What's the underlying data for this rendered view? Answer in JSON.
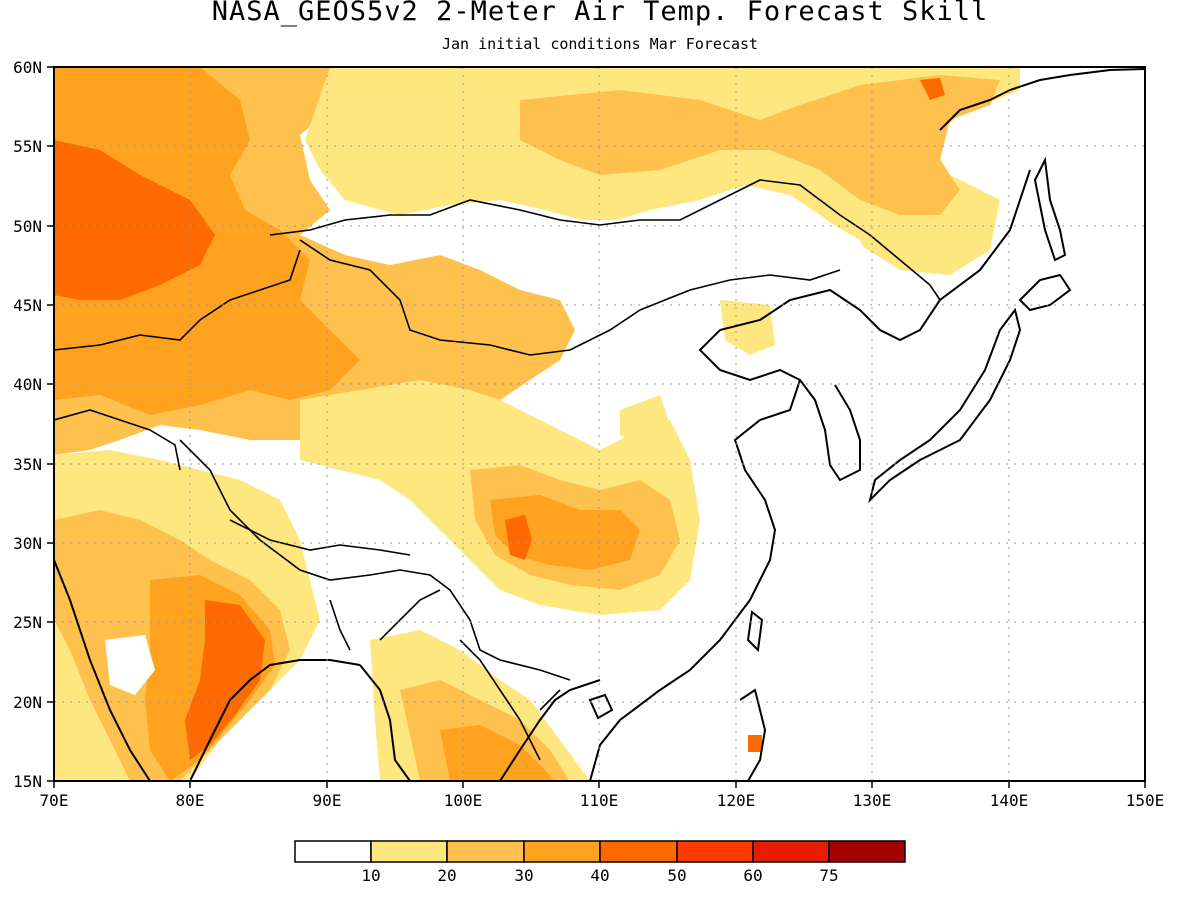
{
  "title": "NASA_GEOS5v2 2-Meter Air Temp. Forecast Skill",
  "subtitle": "Jan initial conditions  Mar Forecast",
  "map": {
    "lon_range": [
      70,
      150
    ],
    "lat_range": [
      15,
      60
    ],
    "lon_ticks": [
      "70E",
      "80E",
      "90E",
      "100E",
      "110E",
      "120E",
      "130E",
      "140E",
      "150E"
    ],
    "lat_ticks": [
      "60N",
      "55N",
      "50N",
      "45N",
      "40N",
      "35N",
      "30N",
      "25N",
      "20N",
      "15N"
    ],
    "grid": "dotted",
    "region": "East and South Asia"
  },
  "colorbar": {
    "colors": [
      "#ffffff",
      "#ffe77f",
      "#ffc14d",
      "#ffa21f",
      "#ff6a00",
      "#ff3a00",
      "#e61b00",
      "#a30000"
    ],
    "labels": [
      "10",
      "20",
      "30",
      "40",
      "50",
      "60",
      "75"
    ]
  }
}
